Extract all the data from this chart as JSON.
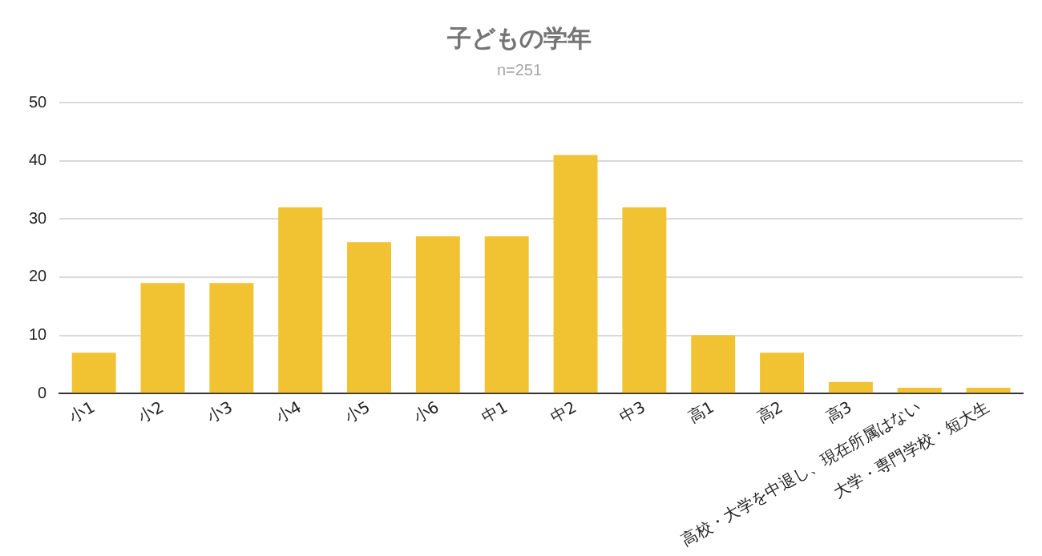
{
  "chart_data": {
    "type": "bar",
    "title": "子どもの学年",
    "subtitle": "n=251",
    "categories": [
      "小1",
      "小2",
      "小3",
      "小4",
      "小5",
      "小6",
      "中1",
      "中2",
      "中3",
      "高1",
      "高2",
      "高3",
      "高校・大学を中退し、現在所属はない",
      "大学・専門学校・短大生"
    ],
    "values": [
      7,
      19,
      19,
      32,
      26,
      27,
      27,
      41,
      32,
      10,
      7,
      2,
      1,
      1
    ],
    "color": "#f1c232",
    "ylim": [
      0,
      50
    ],
    "yticks": [
      0,
      10,
      20,
      30,
      40,
      50
    ],
    "grid": "y",
    "legend": false
  }
}
